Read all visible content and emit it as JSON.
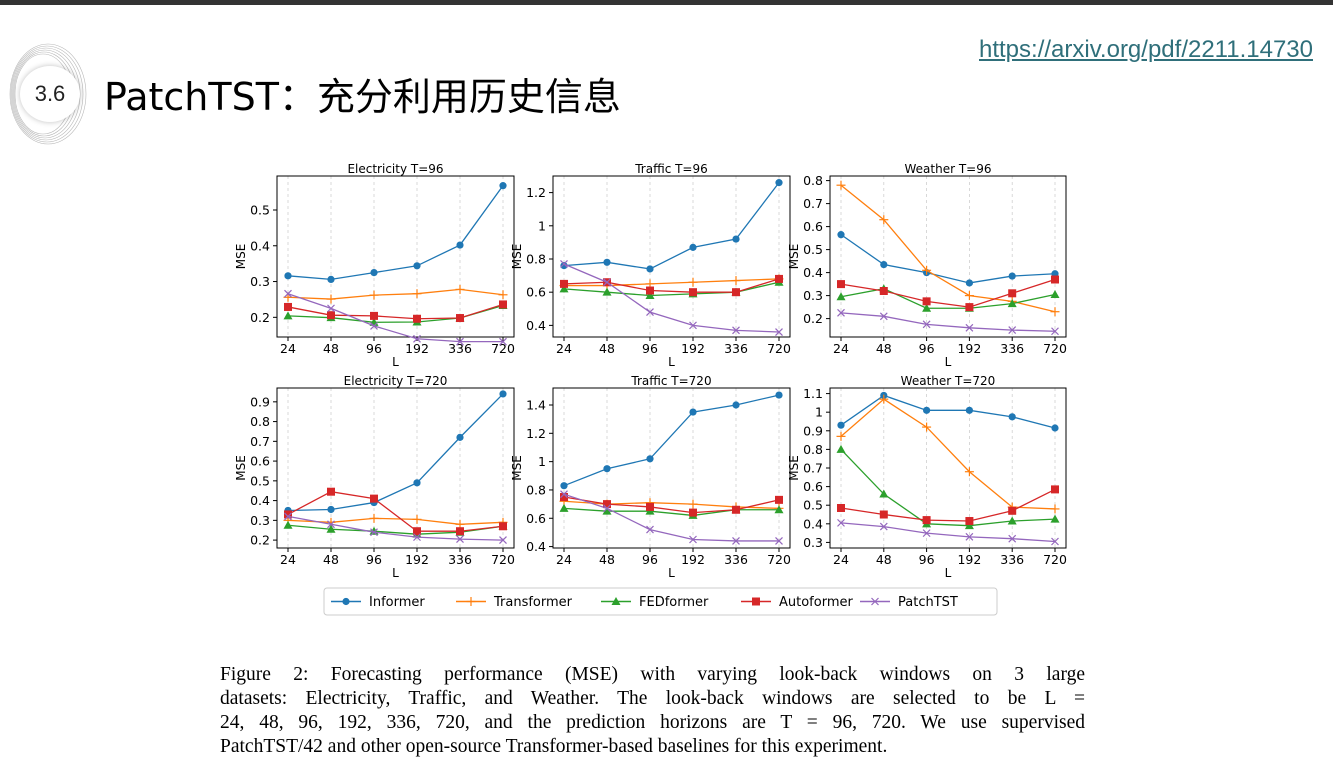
{
  "slide": {
    "section_number": "3.6",
    "title": "PatchTST：充分利用历史信息",
    "link": "https://arxiv.org/pdf/2211.14730"
  },
  "caption_lines": [
    "Figure 2:  Forecasting performance (MSE) with varying look-back windows on 3 large",
    "datasets: Electricity, Traffic, and Weather.  The look-back windows are selected to be L =",
    "24, 48, 96, 192, 336, 720, and the prediction horizons are T = 96, 720.  We use supervised",
    "PatchTST/42 and other open-source Transformer-based baselines for this experiment."
  ],
  "colors": {
    "Informer": "#1f77b4",
    "Transformer": "#ff7f0e",
    "FEDformer": "#2ca02c",
    "Autoformer": "#d62728",
    "PatchTST": "#9467bd"
  },
  "legend": [
    "Informer",
    "Transformer",
    "FEDformer",
    "Autoformer",
    "PatchTST"
  ],
  "chart_data": [
    {
      "type": "line",
      "title": "Electricity T=96",
      "xlabel": "L",
      "ylabel": "MSE",
      "categories": [
        "24",
        "48",
        "96",
        "192",
        "336",
        "720"
      ],
      "ylim": [
        0.145,
        0.595
      ],
      "yticks": [
        0.2,
        0.3,
        0.4,
        0.5
      ],
      "series": [
        {
          "name": "Informer",
          "values": [
            0.316,
            0.306,
            0.325,
            0.344,
            0.402,
            0.568
          ]
        },
        {
          "name": "Transformer",
          "values": [
            0.256,
            0.251,
            0.262,
            0.266,
            0.278,
            0.263
          ]
        },
        {
          "name": "FEDformer",
          "values": [
            0.204,
            0.199,
            0.186,
            0.187,
            0.198,
            0.233
          ]
        },
        {
          "name": "Autoformer",
          "values": [
            0.229,
            0.206,
            0.204,
            0.196,
            0.198,
            0.236
          ]
        },
        {
          "name": "PatchTST",
          "values": [
            0.266,
            0.225,
            0.176,
            0.14,
            0.132,
            0.132
          ]
        }
      ]
    },
    {
      "type": "line",
      "title": "Traffic T=96",
      "xlabel": "L",
      "ylabel": "MSE",
      "categories": [
        "24",
        "48",
        "96",
        "192",
        "336",
        "720"
      ],
      "ylim": [
        0.33,
        1.3
      ],
      "yticks": [
        0.4,
        0.6,
        0.8,
        1.0,
        1.2
      ],
      "series": [
        {
          "name": "Informer",
          "values": [
            0.76,
            0.78,
            0.74,
            0.87,
            0.92,
            1.26
          ]
        },
        {
          "name": "Transformer",
          "values": [
            0.64,
            0.64,
            0.65,
            0.66,
            0.67,
            0.68
          ]
        },
        {
          "name": "FEDformer",
          "values": [
            0.62,
            0.6,
            0.58,
            0.59,
            0.6,
            0.66
          ]
        },
        {
          "name": "Autoformer",
          "values": [
            0.65,
            0.66,
            0.61,
            0.6,
            0.6,
            0.68
          ]
        },
        {
          "name": "PatchTST",
          "values": [
            0.77,
            0.66,
            0.48,
            0.4,
            0.37,
            0.36
          ]
        }
      ]
    },
    {
      "type": "line",
      "title": "Weather T=96",
      "xlabel": "L",
      "ylabel": "MSE",
      "categories": [
        "24",
        "48",
        "96",
        "192",
        "336",
        "720"
      ],
      "ylim": [
        0.12,
        0.82
      ],
      "yticks": [
        0.2,
        0.3,
        0.4,
        0.5,
        0.6,
        0.7,
        0.8
      ],
      "series": [
        {
          "name": "Informer",
          "values": [
            0.565,
            0.435,
            0.4,
            0.355,
            0.385,
            0.395
          ]
        },
        {
          "name": "Transformer",
          "values": [
            0.78,
            0.63,
            0.41,
            0.3,
            0.275,
            0.23
          ]
        },
        {
          "name": "FEDformer",
          "values": [
            0.295,
            0.33,
            0.245,
            0.245,
            0.265,
            0.305
          ]
        },
        {
          "name": "Autoformer",
          "values": [
            0.35,
            0.32,
            0.275,
            0.25,
            0.31,
            0.37
          ]
        },
        {
          "name": "PatchTST",
          "values": [
            0.225,
            0.21,
            0.175,
            0.16,
            0.15,
            0.145
          ]
        }
      ]
    },
    {
      "type": "line",
      "title": "Electricity T=720",
      "xlabel": "L",
      "ylabel": "MSE",
      "categories": [
        "24",
        "48",
        "96",
        "192",
        "336",
        "720"
      ],
      "ylim": [
        0.16,
        0.97
      ],
      "yticks": [
        0.2,
        0.3,
        0.4,
        0.5,
        0.6,
        0.7,
        0.8,
        0.9
      ],
      "series": [
        {
          "name": "Informer",
          "values": [
            0.35,
            0.355,
            0.39,
            0.49,
            0.72,
            0.94
          ]
        },
        {
          "name": "Transformer",
          "values": [
            0.3,
            0.29,
            0.31,
            0.305,
            0.28,
            0.29
          ]
        },
        {
          "name": "FEDformer",
          "values": [
            0.275,
            0.255,
            0.245,
            0.23,
            0.24,
            0.27
          ]
        },
        {
          "name": "Autoformer",
          "values": [
            0.33,
            0.445,
            0.41,
            0.245,
            0.245,
            0.27
          ]
        },
        {
          "name": "PatchTST",
          "values": [
            0.32,
            0.28,
            0.24,
            0.215,
            0.205,
            0.2
          ]
        }
      ]
    },
    {
      "type": "line",
      "title": "Traffic T=720",
      "xlabel": "L",
      "ylabel": "MSE",
      "categories": [
        "24",
        "48",
        "96",
        "192",
        "336",
        "720"
      ],
      "ylim": [
        0.39,
        1.52
      ],
      "yticks": [
        0.4,
        0.6,
        0.8,
        1.0,
        1.2,
        1.4
      ],
      "series": [
        {
          "name": "Informer",
          "values": [
            0.83,
            0.95,
            1.02,
            1.35,
            1.4,
            1.47
          ]
        },
        {
          "name": "Transformer",
          "values": [
            0.72,
            0.7,
            0.71,
            0.7,
            0.68,
            0.67
          ]
        },
        {
          "name": "FEDformer",
          "values": [
            0.67,
            0.65,
            0.65,
            0.62,
            0.66,
            0.66
          ]
        },
        {
          "name": "Autoformer",
          "values": [
            0.75,
            0.7,
            0.68,
            0.64,
            0.66,
            0.73
          ]
        },
        {
          "name": "PatchTST",
          "values": [
            0.77,
            0.67,
            0.52,
            0.45,
            0.44,
            0.44
          ]
        }
      ]
    },
    {
      "type": "line",
      "title": "Weather T=720",
      "xlabel": "L",
      "ylabel": "MSE",
      "categories": [
        "24",
        "48",
        "96",
        "192",
        "336",
        "720"
      ],
      "ylim": [
        0.27,
        1.13
      ],
      "yticks": [
        0.3,
        0.4,
        0.5,
        0.6,
        0.7,
        0.8,
        0.9,
        1.0,
        1.1
      ],
      "series": [
        {
          "name": "Informer",
          "values": [
            0.93,
            1.09,
            1.01,
            1.01,
            0.975,
            0.915
          ]
        },
        {
          "name": "Transformer",
          "values": [
            0.87,
            1.07,
            0.92,
            0.68,
            0.49,
            0.48
          ]
        },
        {
          "name": "FEDformer",
          "values": [
            0.8,
            0.56,
            0.4,
            0.39,
            0.415,
            0.425
          ]
        },
        {
          "name": "Autoformer",
          "values": [
            0.485,
            0.45,
            0.42,
            0.415,
            0.47,
            0.585
          ]
        },
        {
          "name": "PatchTST",
          "values": [
            0.405,
            0.385,
            0.35,
            0.33,
            0.32,
            0.305
          ]
        }
      ]
    }
  ]
}
